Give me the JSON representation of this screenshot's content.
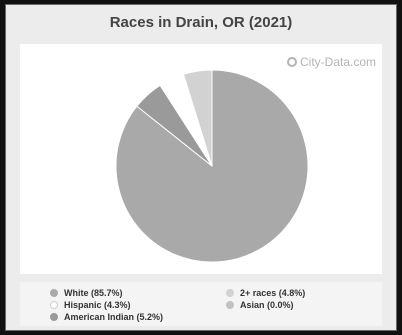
{
  "chart_data": {
    "type": "pie",
    "title": "Races in Drain, OR (2021)",
    "watermark": "City-Data.com",
    "slices": [
      {
        "label": "White (85.7%)",
        "value": 85.7,
        "color": "#a9a9a9"
      },
      {
        "label": "American Indian (5.2%)",
        "value": 5.2,
        "color": "#9a9a9a"
      },
      {
        "label": "Hispanic (4.3%)",
        "value": 4.3,
        "color": "#ffffff"
      },
      {
        "label": "Asian (0.0%)",
        "value": 0.0,
        "color": "#c2c2c2"
      },
      {
        "label": "2+ races (4.8%)",
        "value": 4.8,
        "color": "#d2d2d2"
      }
    ],
    "legend": {
      "left": [
        {
          "label": "White (85.7%)",
          "color": "#a9a9a9"
        },
        {
          "label": "Hispanic (4.3%)",
          "color": "#ffffff"
        },
        {
          "label": "American Indian (5.2%)",
          "color": "#9a9a9a"
        }
      ],
      "right": [
        {
          "label": "2+ races (4.8%)",
          "color": "#d2d2d2"
        },
        {
          "label": "Asian (0.0%)",
          "color": "#c2c2c2"
        }
      ]
    }
  }
}
